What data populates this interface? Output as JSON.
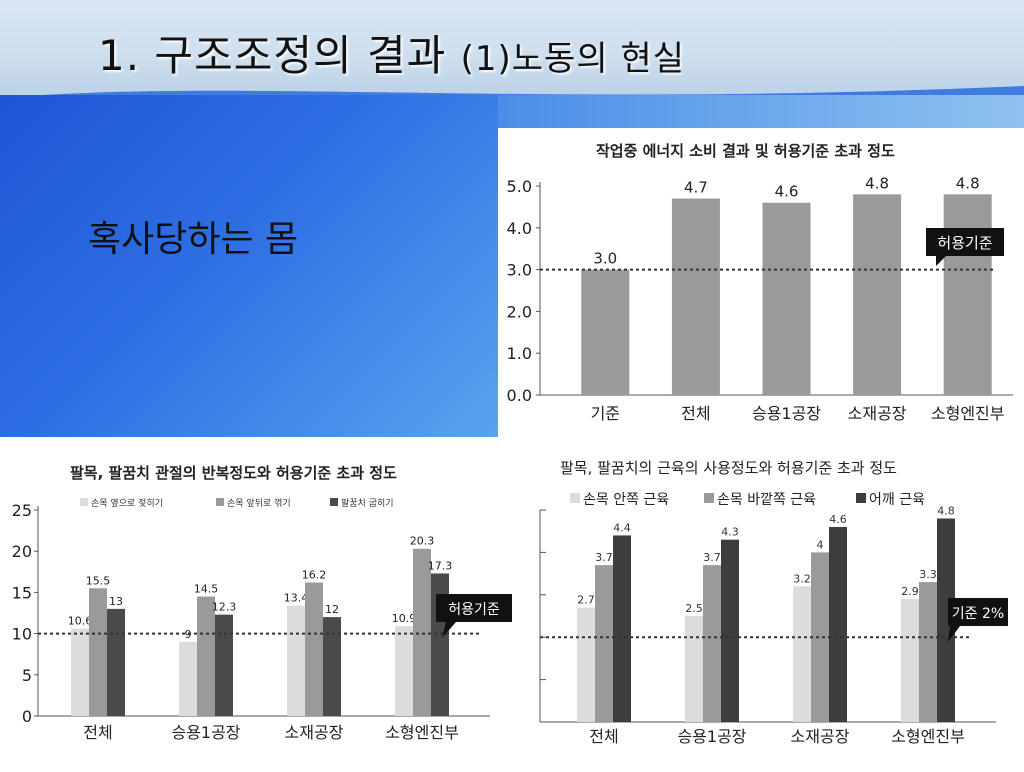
{
  "slide": {
    "title_main": "1. 구조조정의 결과 ",
    "title_sub": "(1)노동의 현실",
    "subtitle": "혹사당하는 몸"
  },
  "chart_data": [
    {
      "type": "bar",
      "title": "작업중 에너지 소비 결과 및 허용기준 초과 정도",
      "categories": [
        "기준",
        "전체",
        "승용1공장",
        "소재공장",
        "소형엔진부"
      ],
      "values": [
        3.0,
        4.7,
        4.6,
        4.8,
        4.8
      ],
      "value_labels": [
        "3.0",
        "4.7",
        "4.6",
        "4.8",
        "4.8"
      ],
      "yticks": [
        "0.0",
        "1.0",
        "2.0",
        "3.0",
        "4.0",
        "5.0"
      ],
      "ylim": [
        0,
        5
      ],
      "threshold": 3.0,
      "threshold_label": "허용기준",
      "colors": {
        "bar": "#9a9a9a"
      }
    },
    {
      "type": "bar",
      "title": "팔목, 팔꿈치 관절의 반복정도와 허용기준 초과 정도",
      "categories": [
        "전체",
        "승용1공장",
        "소재공장",
        "소형엔진부"
      ],
      "series": [
        {
          "name": "손목 옆으로 젖히기",
          "values": [
            10.6,
            9,
            13.4,
            10.9
          ],
          "labels": [
            "10.6",
            "9",
            "13.4",
            "10.9"
          ]
        },
        {
          "name": "손목 앞뒤로 꺾기",
          "values": [
            15.5,
            14.5,
            16.2,
            20.3
          ],
          "labels": [
            "15.5",
            "14.5",
            "16.2",
            "20.3"
          ]
        },
        {
          "name": "팔꿈치 굽히기",
          "values": [
            13,
            12.3,
            12,
            17.3
          ],
          "labels": [
            "13",
            "12.3",
            "12",
            "17.3"
          ]
        }
      ],
      "yticks": [
        "0",
        "5",
        "10",
        "15",
        "20",
        "25"
      ],
      "ylim": [
        0,
        25
      ],
      "threshold": 10,
      "threshold_label": "허용기준",
      "colors": {
        "s1": "#dcdcdc",
        "s2": "#9a9a9a",
        "s3": "#4a4a4a"
      }
    },
    {
      "type": "bar",
      "title": "팔목, 팔꿈치의 근육의 사용정도와 허용기준 초과 정도",
      "categories": [
        "전체",
        "승용1공장",
        "소재공장",
        "소형엔진부"
      ],
      "series": [
        {
          "name": "손목 안쪽 근육",
          "values": [
            2.7,
            2.5,
            3.2,
            2.9
          ],
          "labels": [
            "2.7",
            "2.5",
            "3.2",
            "2.9"
          ]
        },
        {
          "name": "손목 바깥쪽 근육",
          "values": [
            3.7,
            3.7,
            4,
            3.3
          ],
          "labels": [
            "3.7",
            "3.7",
            "4",
            "3.3"
          ]
        },
        {
          "name": "어깨 근육",
          "values": [
            4.4,
            4.3,
            4.6,
            4.8
          ],
          "labels": [
            "4.4",
            "4.3",
            "4.6",
            "4.8"
          ]
        }
      ],
      "ylim": [
        0,
        5
      ],
      "threshold": 2,
      "threshold_label": "기준 2%",
      "colors": {
        "s1": "#dcdcdc",
        "s2": "#9a9a9a",
        "s3": "#3d3d3d"
      }
    }
  ]
}
